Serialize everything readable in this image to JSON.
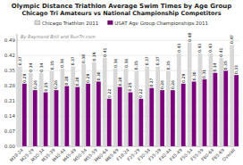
{
  "chart_data": {
    "type": "bar",
    "title": "Olympic Distance Triathlon Average Swim Times by Age Group",
    "subtitle": "Chicago Tri Amateurs vs National Championship Competitors",
    "annotation": "By Raymond Brill and RunTri.com",
    "categories": [
      "M18-24",
      "M25-29",
      "M30-34",
      "M35-39",
      "M40-44",
      "M45-49",
      "M50-54",
      "M55-59",
      "M60-64",
      "M65-69",
      "F18-24",
      "F25-29",
      "F30-34",
      "F35-39",
      "F40-44",
      "F45-49",
      "F50-54",
      "F55-59",
      "F60-64",
      "F65-69",
      "Overall"
    ],
    "series": [
      {
        "name": "Chicago Triathlon 2011",
        "color": "#d8d8d8",
        "values": [
          0.37,
          0.34,
          0.34,
          0.35,
          0.36,
          0.37,
          0.38,
          0.39,
          0.41,
          0.36,
          0.36,
          0.35,
          0.37,
          0.37,
          0.35,
          0.43,
          0.48,
          0.43,
          0.43,
          0.41,
          0.47
        ]
      },
      {
        "name": "USAT Age Group Championships 2011",
        "color": "#7b007b",
        "values": [
          0.29,
          0.26,
          0.25,
          0.26,
          0.279,
          0.275,
          0.29,
          0.3,
          0.22,
          0.275,
          0.25,
          0.22,
          0.27,
          0.26,
          0.26,
          0.29,
          0.3,
          0.31,
          0.34,
          0.35,
          0.33
        ],
        "value_labels": [
          "0.29",
          "0.26",
          "0.25",
          "0.26",
          "0.28",
          "0.28",
          "0.29",
          "0.30",
          "0.22",
          "0.28",
          "0.25",
          "0.22",
          "0.27",
          "0.26",
          "0.26",
          "0.29",
          "0.30",
          "0.31",
          "0.34",
          "0.35",
          "0.33"
        ]
      }
    ],
    "ylim": [
      0.0,
      0.52
    ],
    "yticks": [
      {
        "value": 0,
        "label": "0.00"
      },
      0.07,
      0.14,
      0.21,
      0.28,
      0.35,
      0.42,
      0.49
    ],
    "grid": true,
    "legend": "top",
    "data_labels": true
  }
}
